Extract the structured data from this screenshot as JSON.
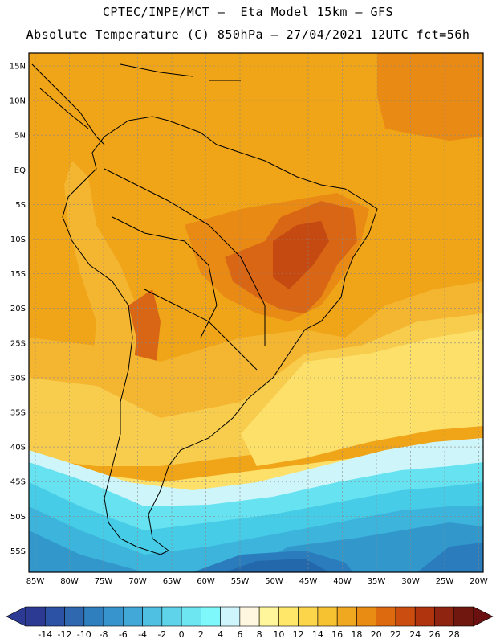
{
  "header": {
    "line1": "CPTEC/INPE/MCT –  Eta Model 15km – GFS",
    "line2": "Absolute Temperature (C) 850hPa – 27/04/2021 12UTC fct=56h"
  },
  "map": {
    "lat_labels": [
      "15N",
      "10N",
      "5N",
      "EQ",
      "5S",
      "10S",
      "15S",
      "20S",
      "25S",
      "30S",
      "35S",
      "40S",
      "45S",
      "50S",
      "55S"
    ],
    "lon_labels": [
      "85W",
      "80W",
      "75W",
      "70W",
      "65W",
      "60W",
      "55W",
      "50W",
      "45W",
      "40W",
      "35W",
      "30W",
      "25W",
      "20W"
    ],
    "colors": {
      "t12": "#fce06a",
      "t14": "#f8cc4c",
      "t16": "#f4b630",
      "t18": "#f0a418",
      "t20": "#e88a14",
      "t22": "#d86614",
      "t24": "#c44a12",
      "t6": "#cef6fa",
      "t4": "#a8eef8",
      "t2": "#66e2f0",
      "t0": "#46cce6",
      "tm2": "#3cb4dc",
      "tm4": "#3298cc",
      "tm6": "#2a7cbc",
      "tm8": "#2468ac",
      "coast": "#000000"
    }
  },
  "colorbar": {
    "labels": [
      "-14",
      "-12",
      "-10",
      "-8",
      "-6",
      "-4",
      "-2",
      "0",
      "2",
      "4",
      "6",
      "8",
      "10",
      "12",
      "14",
      "16",
      "18",
      "20",
      "22",
      "24",
      "26",
      "28"
    ],
    "colors": [
      "#2d3a94",
      "#2b52a4",
      "#3068b0",
      "#2f7fbe",
      "#3794cc",
      "#42a8d8",
      "#4fbfe2",
      "#5fd3ea",
      "#6ee6f2",
      "#7ff8fc",
      "#cdf5fb",
      "#fff7e0",
      "#fff59a",
      "#ffe76a",
      "#fcd54a",
      "#f6c232",
      "#f0a820",
      "#e98c14",
      "#de6a10",
      "#cc4d10",
      "#b0340e",
      "#8f2410",
      "#701810"
    ]
  }
}
